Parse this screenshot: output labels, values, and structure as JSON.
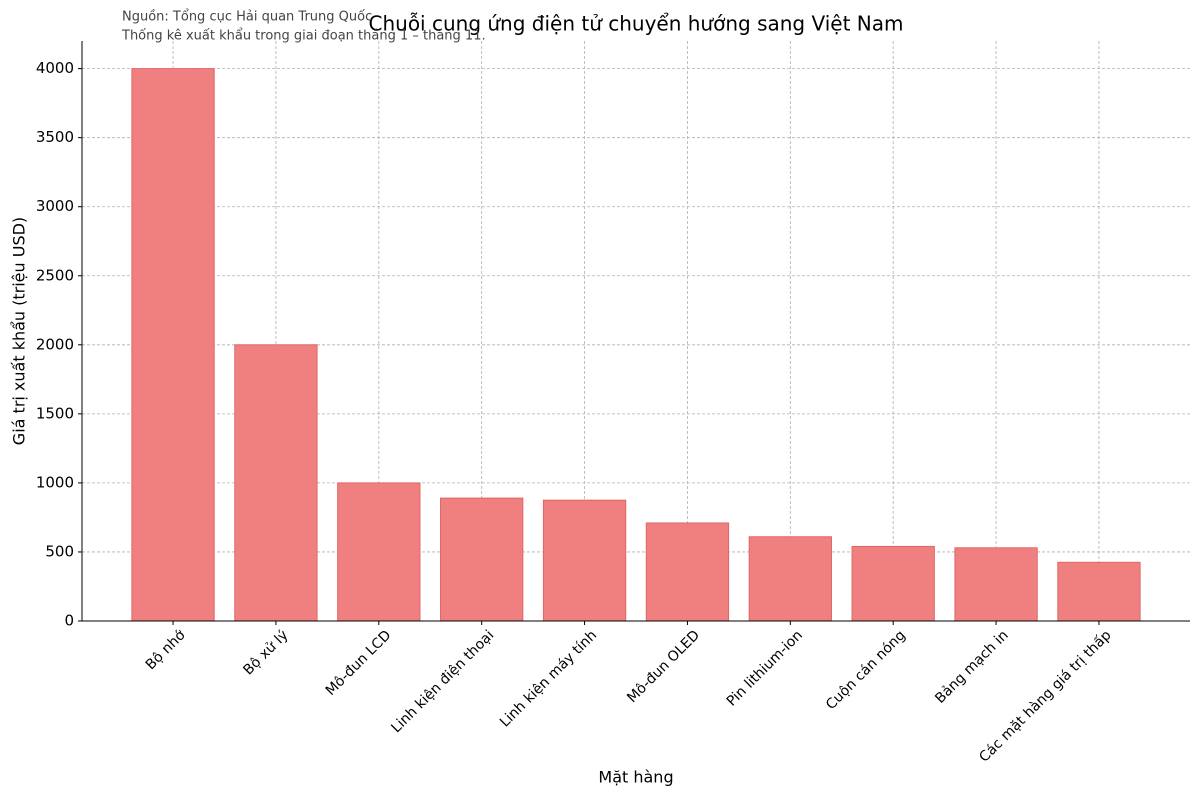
{
  "chart_data": {
    "type": "bar",
    "title": "Chuỗi cung ứng điện tử chuyển hướng sang Việt Nam",
    "annotations": [
      "Nguồn: Tổng cục Hải quan Trung Quốc",
      "Thống kê xuất khẩu trong giai đoạn tháng 1 – tháng 11."
    ],
    "x_label": "Mặt hàng",
    "y_label": "Giá trị xuất khẩu (triệu USD)",
    "categories": [
      "Bộ nhớ",
      "Bộ xử lý",
      "Mô-đun LCD",
      "Linh kiện điện thoại",
      "Linh kiện máy tính",
      "Mô-đun OLED",
      "Pin lithium-ion",
      "Cuộn cán nóng",
      "Bảng mạch in",
      "Các mặt hàng giá trị thấp"
    ],
    "values": [
      4000,
      2000,
      1000,
      890,
      875,
      710,
      610,
      540,
      530,
      425
    ],
    "color": "#f08080",
    "ylim": [
      0,
      4200
    ],
    "yticks": [
      0,
      500,
      1000,
      1500,
      2000,
      2500,
      3000,
      3500,
      4000
    ],
    "grid": true
  }
}
